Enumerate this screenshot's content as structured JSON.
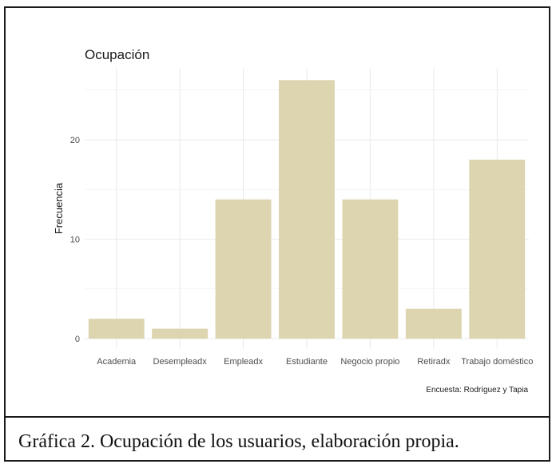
{
  "chart_data": {
    "type": "bar",
    "title": "Ocupación",
    "xlabel": "",
    "ylabel": "Frecuencia",
    "caption": "Encuesta: Rodríguez y Tapia",
    "categories": [
      "Academia",
      "Desempleadx",
      "Empleadx",
      "Estudiante",
      "Negocio propio",
      "Retiradx",
      "Trabajo doméstico"
    ],
    "values": [
      2,
      1,
      14,
      26,
      14,
      3,
      18
    ],
    "yticks": [
      "0",
      "10",
      "20"
    ],
    "ylim": [
      0,
      27
    ],
    "grid": true,
    "bar_color": "#ddd5b0",
    "grid_color": "#ebebeb"
  },
  "figure_caption": "Gráfica 2. Ocupación de los usuarios, elaboración propia."
}
